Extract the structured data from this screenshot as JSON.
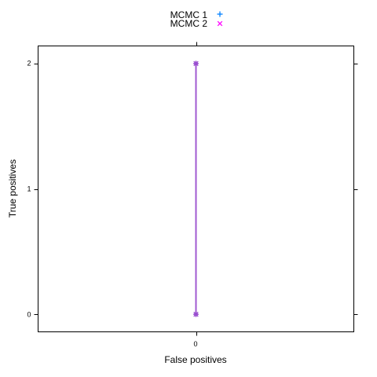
{
  "chart_data": {
    "type": "line",
    "xlabel": "False positives",
    "ylabel": "True positives",
    "x_ticks": [
      "0"
    ],
    "y_ticks": [
      "0",
      "1",
      "2"
    ],
    "xlim": [
      -1,
      1
    ],
    "ylim": [
      -0.14,
      2.14
    ],
    "legend_position": "top",
    "series": [
      {
        "name": "MCMC 1",
        "marker": "plus",
        "color": "#0080ff",
        "x": [
          0,
          0
        ],
        "y": [
          0,
          2
        ]
      },
      {
        "name": "MCMC 2",
        "marker": "cross",
        "color": "#ff00ff",
        "x": [
          0,
          0
        ],
        "y": [
          0,
          2
        ]
      }
    ],
    "line_color": "#a05ad0",
    "marker_overlap_color": "#9a4fd0"
  }
}
